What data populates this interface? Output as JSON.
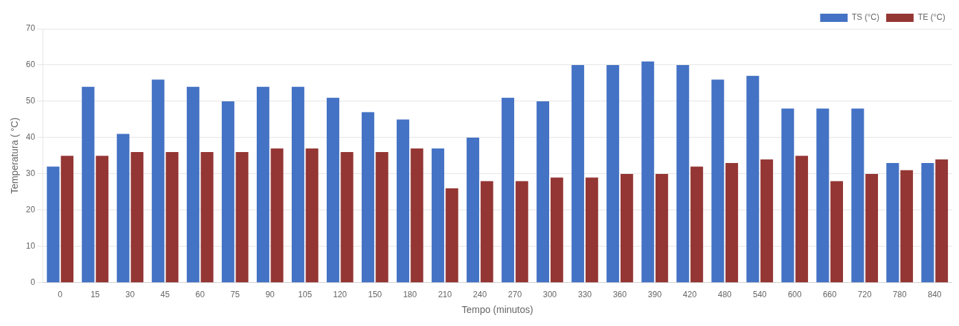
{
  "chart_data": {
    "type": "bar",
    "categories": [
      "0",
      "15",
      "30",
      "45",
      "60",
      "75",
      "90",
      "105",
      "120",
      "150",
      "180",
      "210",
      "240",
      "270",
      "300",
      "330",
      "360",
      "390",
      "420",
      "480",
      "540",
      "600",
      "660",
      "720",
      "780",
      "840"
    ],
    "series": [
      {
        "name": "TS (°C)",
        "color": "#4472C4",
        "values": [
          32,
          54,
          41,
          56,
          54,
          50,
          54,
          54,
          51,
          47,
          45,
          37,
          40,
          51,
          50,
          60,
          60,
          61,
          60,
          56,
          57,
          48,
          48,
          48,
          33,
          33
        ]
      },
      {
        "name": "TE (°C)",
        "color": "#943634",
        "values": [
          35,
          35,
          36,
          36,
          36,
          36,
          37,
          37,
          36,
          36,
          37,
          26,
          28,
          28,
          29,
          29,
          30,
          30,
          32,
          33,
          34,
          35,
          28,
          30,
          31,
          34
        ]
      }
    ],
    "x_label": "Tempo (minutos)",
    "y_label": "Temperatura ( °C)",
    "ylim": [
      0,
      70
    ],
    "yticks": [
      0,
      10,
      20,
      30,
      40,
      50,
      60,
      70
    ],
    "grid": true,
    "legend": "upper right"
  }
}
